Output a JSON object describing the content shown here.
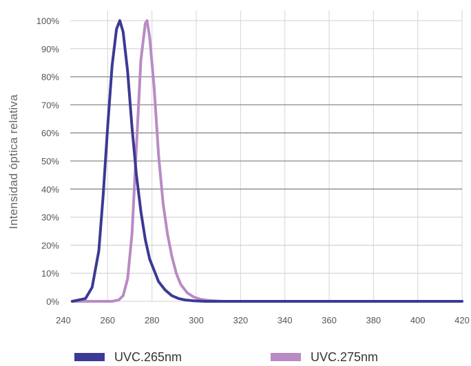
{
  "chart_data": {
    "type": "line",
    "ylabel": "Intensidad óptica relativa",
    "xlabel": "",
    "xlim": [
      240,
      420
    ],
    "ylim": [
      0,
      100
    ],
    "x_ticks": [
      "240",
      "260",
      "280",
      "300",
      "320",
      "340",
      "360",
      "380",
      "400",
      "420"
    ],
    "y_ticks": [
      "0%",
      "10%",
      "20%",
      "30%",
      "40%",
      "50%",
      "60%",
      "70%",
      "80%",
      "90%",
      "100%"
    ],
    "grid": true,
    "legend_position": "bottom",
    "series": [
      {
        "name": "UVC.265nm",
        "color": "#3b3a94",
        "x": [
          244,
          250,
          253,
          256,
          258,
          260,
          262,
          264,
          265.5,
          267,
          269,
          271,
          273,
          275,
          277,
          279,
          281,
          283,
          286,
          289,
          292,
          295,
          299,
          304,
          310,
          420
        ],
        "y": [
          0,
          1,
          5,
          18,
          38,
          62,
          84,
          97,
          100,
          96,
          82,
          62,
          45,
          32,
          22,
          15,
          11,
          7,
          4,
          2,
          1,
          0.5,
          0.2,
          0,
          0,
          0
        ]
      },
      {
        "name": "UVC.275nm",
        "color": "#b98bc4",
        "x": [
          244,
          262,
          265,
          267,
          269,
          271,
          273,
          275,
          277,
          277.8,
          279,
          281,
          283,
          285,
          287,
          289,
          291,
          293,
          296,
          299,
          302,
          306,
          312,
          420
        ],
        "y": [
          0,
          0,
          0.5,
          2,
          8,
          24,
          55,
          86,
          99,
          100,
          94,
          76,
          52,
          35,
          24,
          16,
          10,
          6,
          3,
          1.5,
          0.7,
          0.3,
          0,
          0
        ]
      }
    ]
  }
}
